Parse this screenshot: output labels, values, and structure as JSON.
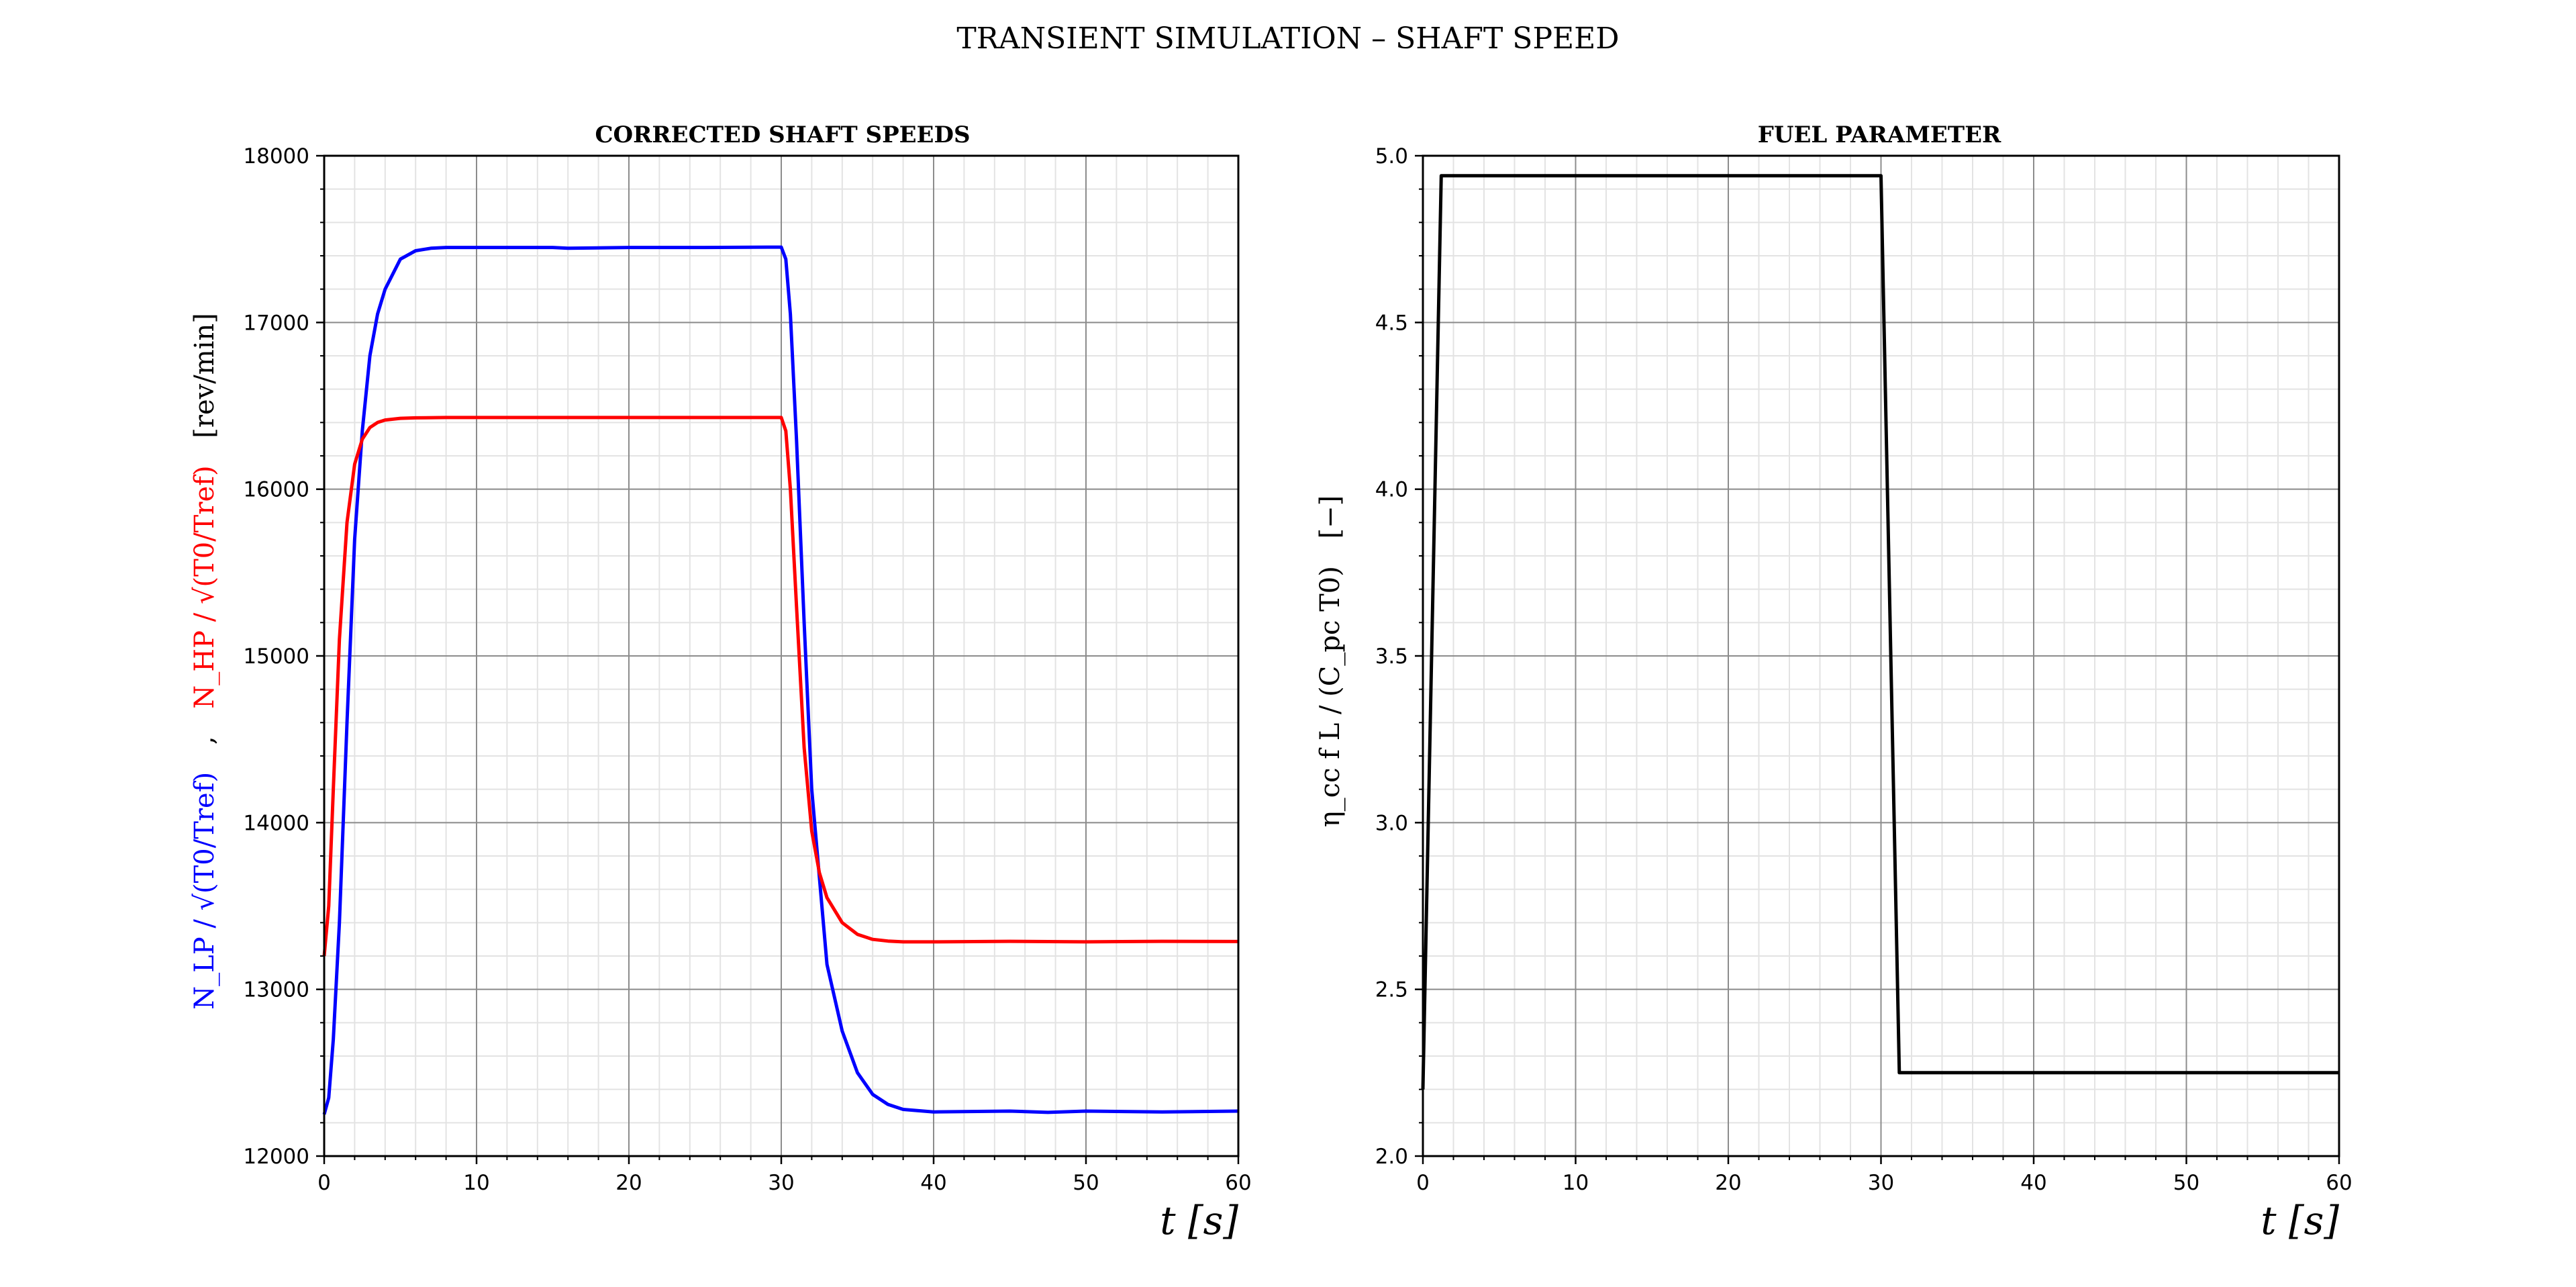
{
  "figure": {
    "title": "TRANSIENT SIMULATION – SHAFT SPEED"
  },
  "chart_data": [
    {
      "type": "line",
      "title": "CORRECTED SHAFT SPEEDS",
      "xlabel": "t [s]",
      "ylabel_parts": {
        "lp": "N_LP / √(T0/Tref)",
        "separator": ",",
        "hp": "N_HP / √(T0/Tref)",
        "unit": "[rev/min]"
      },
      "xlim": [
        0,
        60
      ],
      "ylim": [
        12000,
        18000
      ],
      "xticks": [
        0,
        10,
        20,
        30,
        40,
        50,
        60
      ],
      "yticks": [
        12000,
        13000,
        14000,
        15000,
        16000,
        17000,
        18000
      ],
      "grid": true,
      "minor_grid": true,
      "series": [
        {
          "key": "lp",
          "color": "#0000ff",
          "x": [
            0,
            0.3,
            0.6,
            1,
            1.5,
            2,
            2.5,
            3,
            3.5,
            4,
            5,
            6,
            7,
            8,
            10,
            15,
            16,
            20,
            25,
            29.5,
            30,
            30.3,
            30.6,
            31,
            31.5,
            32,
            33,
            34,
            35,
            36,
            37,
            38,
            40,
            45,
            47.5,
            50,
            55,
            60
          ],
          "y": [
            12250,
            12350,
            12700,
            13400,
            14600,
            15700,
            16350,
            16800,
            17050,
            17200,
            17380,
            17430,
            17445,
            17450,
            17450,
            17450,
            17445,
            17450,
            17450,
            17452,
            17452,
            17380,
            17050,
            16300,
            15200,
            14200,
            13150,
            12750,
            12500,
            12370,
            12310,
            12280,
            12265,
            12270,
            12262,
            12270,
            12265,
            12270
          ]
        },
        {
          "key": "hp",
          "color": "#ff0000",
          "x": [
            0,
            0.3,
            0.6,
            1,
            1.5,
            2,
            2.5,
            3,
            3.5,
            4,
            5,
            6,
            8,
            10,
            20,
            25,
            29.5,
            30,
            30.3,
            30.6,
            31,
            31.5,
            32,
            32.5,
            33,
            34,
            35,
            36,
            37,
            38,
            40,
            45,
            50,
            55,
            60
          ],
          "y": [
            13200,
            13500,
            14200,
            15100,
            15800,
            16150,
            16300,
            16370,
            16400,
            16415,
            16425,
            16428,
            16430,
            16430,
            16430,
            16430,
            16430,
            16430,
            16350,
            16000,
            15300,
            14450,
            13950,
            13700,
            13550,
            13400,
            13330,
            13300,
            13290,
            13285,
            13285,
            13288,
            13285,
            13288,
            13287
          ]
        }
      ]
    },
    {
      "type": "line",
      "title": "FUEL PARAMETER",
      "xlabel": "t [s]",
      "ylabel_parts": {
        "main": "η_cc f L / (C_pc T0)",
        "unit": "[−]"
      },
      "xlim": [
        0,
        60
      ],
      "ylim": [
        2.0,
        5.0
      ],
      "xticks": [
        0,
        10,
        20,
        30,
        40,
        50,
        60
      ],
      "yticks": [
        2.0,
        2.5,
        3.0,
        3.5,
        4.0,
        4.5,
        5.0
      ],
      "grid": true,
      "minor_grid": true,
      "series": [
        {
          "key": "fuel",
          "color": "#000000",
          "x": [
            0,
            1.2,
            30,
            31.2,
            60
          ],
          "y": [
            2.2,
            4.94,
            4.94,
            2.25,
            2.25
          ]
        }
      ]
    }
  ]
}
